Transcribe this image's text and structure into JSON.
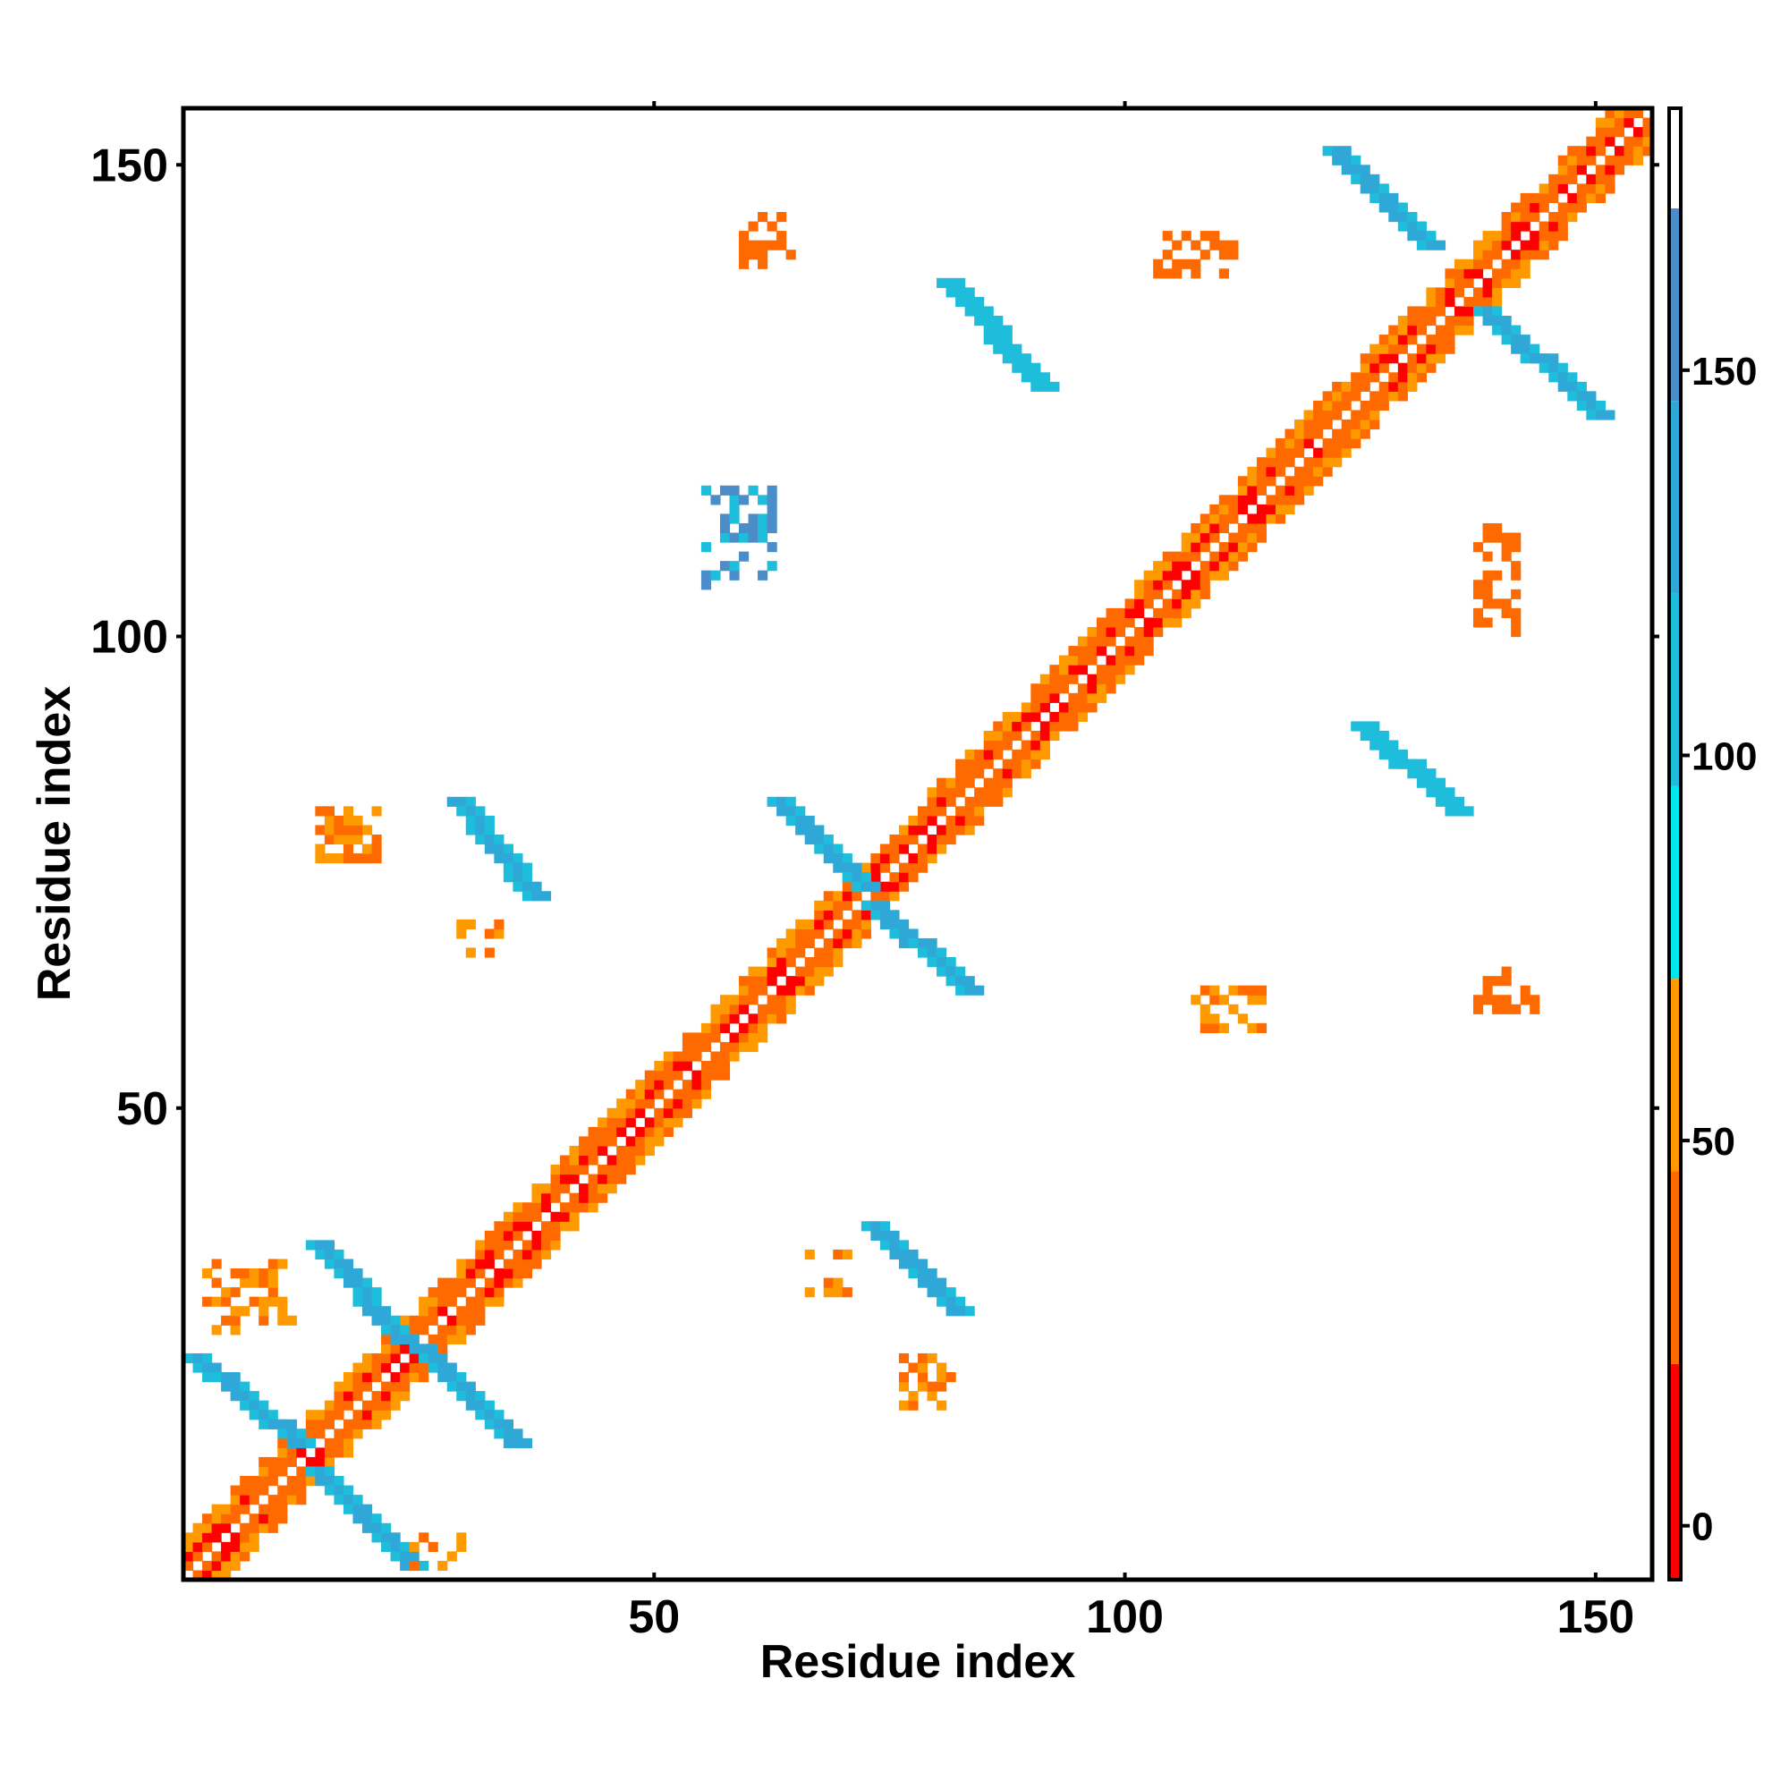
{
  "chart_data": {
    "type": "heatmap",
    "xlabel": "Residue index",
    "ylabel": "Residue index",
    "xlim": [
      0,
      156
    ],
    "ylim": [
      0,
      156
    ],
    "x_ticks": [
      50,
      100,
      150
    ],
    "y_ticks": [
      50,
      100,
      150
    ],
    "colorbar": {
      "range": [
        -7,
        184
      ],
      "ticks": [
        0,
        50,
        100,
        150
      ],
      "bands": [
        {
          "from": -7,
          "to": 21,
          "color": "#ff0000"
        },
        {
          "from": 21,
          "to": 46,
          "color": "#ff6a00"
        },
        {
          "from": 46,
          "to": 71,
          "color": "#ff9900"
        },
        {
          "from": 71,
          "to": 96,
          "color": "#00e5ee"
        },
        {
          "from": 96,
          "to": 121,
          "color": "#1ebddb"
        },
        {
          "from": 121,
          "to": 146,
          "color": "#2fa8d8"
        },
        {
          "from": 146,
          "to": 171,
          "color": "#4a8dc8"
        },
        {
          "from": 171,
          "to": 184,
          "color": "#ffffff"
        }
      ]
    },
    "grid": false,
    "diagonal_contacts": {
      "description_free": true,
      "x": [
        1,
        156
      ],
      "y": [
        1,
        156
      ]
    },
    "off_diagonal_blocks": [
      {
        "x": [
          15,
          25
        ],
        "y": [
          2,
          12
        ],
        "orientation": "anti",
        "value": 140
      },
      {
        "x": [
          2,
          13
        ],
        "y": [
          15,
          24
        ],
        "orientation": "anti",
        "value": 140
      },
      {
        "x": [
          15,
          24
        ],
        "y": [
          26,
          36
        ],
        "orientation": "anti",
        "value": 140
      },
      {
        "x": [
          26,
          36
        ],
        "y": [
          15,
          25
        ],
        "orientation": "anti",
        "value": 140
      },
      {
        "x": [
          30,
          38
        ],
        "y": [
          73,
          83
        ],
        "orientation": "anti",
        "value": 145
      },
      {
        "x": [
          74,
          83
        ],
        "y": [
          29,
          38
        ],
        "orientation": "anti",
        "value": 145
      },
      {
        "x": [
          64,
          73
        ],
        "y": [
          74,
          83
        ],
        "orientation": "anti",
        "value": 140
      },
      {
        "x": [
          74,
          84
        ],
        "y": [
          63,
          72
        ],
        "orientation": "anti",
        "value": 140
      },
      {
        "x": [
          123,
          133
        ],
        "y": [
          142,
          152
        ],
        "orientation": "anti",
        "value": 140
      },
      {
        "x": [
          139,
          151
        ],
        "y": [
          124,
          135
        ],
        "orientation": "anti",
        "value": 140
      },
      {
        "x": [
          82,
          92
        ],
        "y": [
          127,
          138
        ],
        "orientation": "anti",
        "value": 110
      },
      {
        "x": [
          126,
          136
        ],
        "y": [
          82,
          91
        ],
        "orientation": "anti",
        "value": 110
      },
      {
        "x": [
          60,
          65
        ],
        "y": [
          140,
          145
        ],
        "orientation": "block",
        "value": 40
      },
      {
        "x": [
          104,
          112
        ],
        "y": [
          139,
          143
        ],
        "orientation": "block",
        "value": 30
      },
      {
        "x": [
          138,
          142
        ],
        "y": [
          101,
          112
        ],
        "orientation": "block",
        "value": 30
      },
      {
        "x": [
          138,
          144
        ],
        "y": [
          61,
          65
        ],
        "orientation": "block",
        "value": 40
      },
      {
        "x": [
          108,
          115
        ],
        "y": [
          59,
          63
        ],
        "orientation": "block",
        "value": 60
      },
      {
        "x": [
          56,
          63
        ],
        "y": [
          106,
          116
        ],
        "orientation": "block",
        "value": 100
      },
      {
        "x": [
          15,
          21
        ],
        "y": [
          77,
          82
        ],
        "orientation": "block",
        "value": 60
      },
      {
        "x": [
          30,
          34
        ],
        "y": [
          67,
          70
        ],
        "orientation": "block",
        "value": 50
      },
      {
        "x": [
          67,
          71
        ],
        "y": [
          31,
          35
        ],
        "orientation": "block",
        "value": 50
      },
      {
        "x": [
          77,
          82
        ],
        "y": [
          19,
          24
        ],
        "orientation": "block",
        "value": 50
      },
      {
        "x": [
          3,
          12
        ],
        "y": [
          27,
          34
        ],
        "orientation": "block",
        "value": 60
      },
      {
        "x": [
          25,
          31
        ],
        "y": [
          2,
          6
        ],
        "orientation": "block",
        "value": 60
      }
    ]
  }
}
